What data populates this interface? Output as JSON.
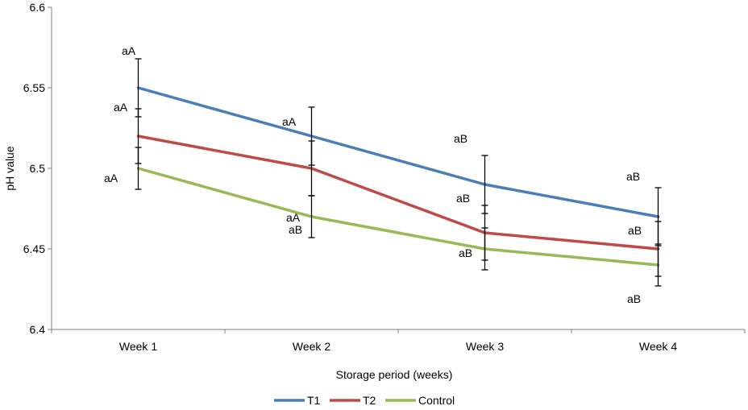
{
  "chart_data": {
    "type": "line",
    "title": "",
    "xlabel": "Storage period (weeks)",
    "ylabel": "pH value",
    "categories": [
      "Week 1",
      "Week 2",
      "Week 3",
      "Week 4"
    ],
    "ylim": [
      6.4,
      6.6
    ],
    "yticks": [
      "6.4",
      "6.45",
      "6.5",
      "6.55",
      "6.6"
    ],
    "grid": false,
    "legend_position": "bottom",
    "series": [
      {
        "name": "T1",
        "color": "#4a7ebb",
        "values": [
          6.55,
          6.52,
          6.49,
          6.47
        ],
        "error": [
          0.018,
          0.018,
          0.018,
          0.018
        ],
        "labels": [
          "aA",
          "aA",
          "aB",
          "aB"
        ]
      },
      {
        "name": "T2",
        "color": "#be4b48",
        "values": [
          6.52,
          6.5,
          6.46,
          6.45
        ],
        "error": [
          0.017,
          0.017,
          0.017,
          0.017
        ],
        "labels": [
          "aA",
          "aA",
          "aB",
          "aB"
        ]
      },
      {
        "name": "Control",
        "color": "#98b954",
        "values": [
          6.5,
          6.47,
          6.45,
          6.44
        ],
        "error": [
          0.013,
          0.013,
          0.013,
          0.013
        ],
        "labels": [
          "aA",
          "aB",
          "aB",
          "aB"
        ]
      }
    ]
  }
}
